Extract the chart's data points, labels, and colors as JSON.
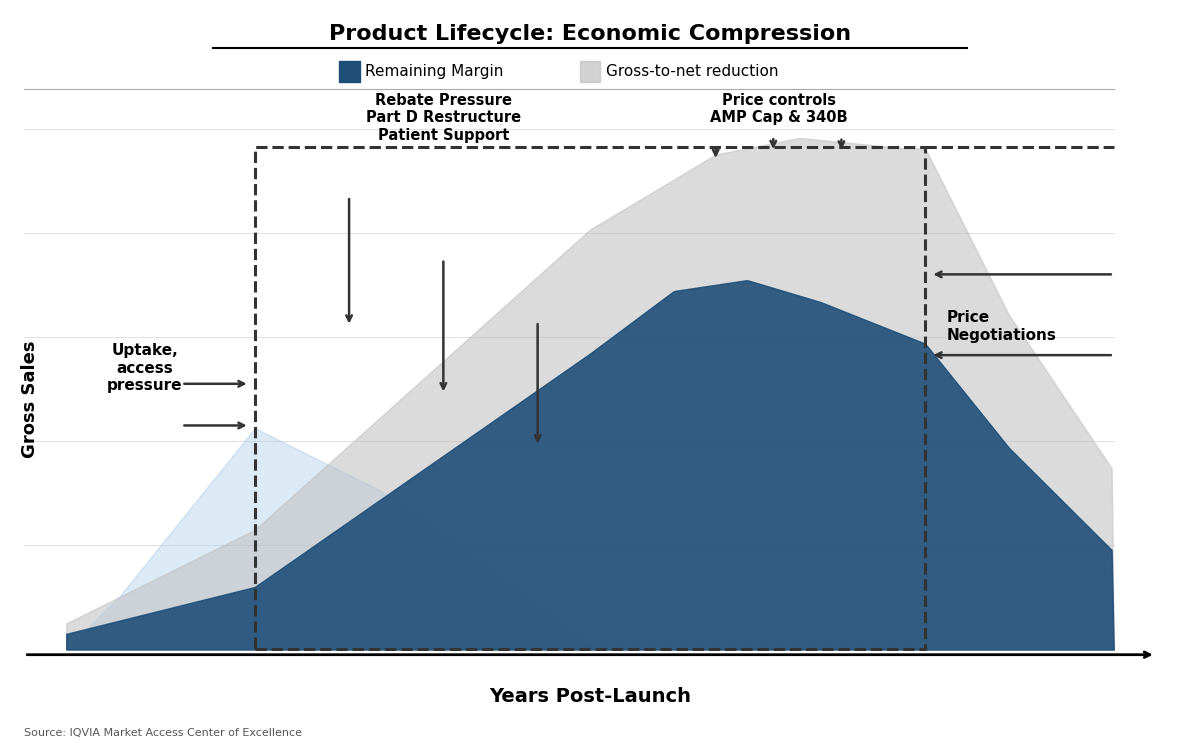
{
  "title": "Product Lifecycle: Economic Compression",
  "xlabel": "Years Post-Launch",
  "ylabel": "Gross Sales",
  "legend_entries": [
    "Remaining Margin",
    "Gross-to-net reduction"
  ],
  "colors": {
    "dark_blue": "#1F4E79",
    "light_blue_bg": "#9DC3E6",
    "grey_area": "#BFBFBF",
    "white_bg": "#FFFFFF",
    "axis_line": "#333333",
    "dashed_box": "#333333"
  },
  "source": "Source: IQVIA Market Access Center of Excellence",
  "annotations": {
    "rebate": "Rebate Pressure\nPart D Restructure\nPatient Support",
    "price_controls": "Price controls\nAMP Cap & 340B",
    "uptake": "Uptake,\naccess\npressure",
    "price_neg": "Price\nNegotiations"
  }
}
